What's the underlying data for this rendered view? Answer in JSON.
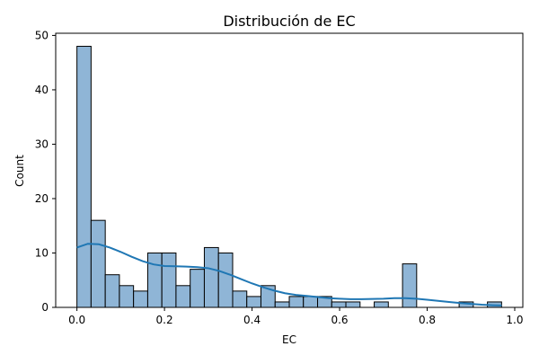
{
  "chart_data": {
    "type": "bar",
    "title": "Distribución de EC",
    "xlabel": "EC",
    "ylabel": "Count",
    "xlim": [
      -0.0485,
      1.0185
    ],
    "ylim": [
      0,
      50.4
    ],
    "x_ticks": [
      "0.0",
      "0.2",
      "0.4",
      "0.6",
      "0.8",
      "1.0"
    ],
    "x_tick_values": [
      0.0,
      0.2,
      0.4,
      0.6,
      0.8,
      1.0
    ],
    "y_ticks": [
      "0",
      "10",
      "20",
      "30",
      "40",
      "50"
    ],
    "y_tick_values": [
      0,
      10,
      20,
      30,
      40,
      50
    ],
    "grid": false,
    "bin_edges": [
      0.0,
      0.0323,
      0.0647,
      0.097,
      0.1293,
      0.1617,
      0.194,
      0.2263,
      0.2587,
      0.291,
      0.3233,
      0.3557,
      0.388,
      0.4203,
      0.4527,
      0.485,
      0.5173,
      0.5497,
      0.582,
      0.6143,
      0.6467,
      0.679,
      0.7113,
      0.7437,
      0.776,
      0.8083,
      0.8407,
      0.873,
      0.9053,
      0.9377,
      0.97
    ],
    "counts": [
      48,
      16,
      6,
      4,
      3,
      10,
      10,
      4,
      7,
      11,
      10,
      3,
      2,
      4,
      1,
      2,
      2,
      2,
      1,
      1,
      0,
      1,
      0,
      8,
      0,
      0,
      0,
      1,
      0,
      1
    ],
    "kde": {
      "x": [
        0.0,
        0.025,
        0.05,
        0.075,
        0.1,
        0.125,
        0.15,
        0.175,
        0.2,
        0.225,
        0.25,
        0.275,
        0.3,
        0.325,
        0.35,
        0.375,
        0.4,
        0.425,
        0.45,
        0.475,
        0.5,
        0.525,
        0.55,
        0.575,
        0.6,
        0.625,
        0.65,
        0.675,
        0.7,
        0.725,
        0.75,
        0.775,
        0.8,
        0.825,
        0.85,
        0.875,
        0.9,
        0.925,
        0.95,
        0.97
      ],
      "y": [
        11.0,
        11.7,
        11.6,
        11.0,
        10.2,
        9.3,
        8.5,
        7.9,
        7.6,
        7.55,
        7.5,
        7.4,
        7.2,
        6.7,
        6.0,
        5.2,
        4.4,
        3.7,
        3.1,
        2.6,
        2.3,
        2.1,
        1.9,
        1.7,
        1.6,
        1.5,
        1.5,
        1.55,
        1.6,
        1.7,
        1.7,
        1.6,
        1.4,
        1.2,
        1.0,
        0.8,
        0.65,
        0.5,
        0.4,
        0.35
      ]
    },
    "bar_fill": "#8fb5d6",
    "bar_edge": "#000000",
    "kde_color": "#1f77b4"
  }
}
